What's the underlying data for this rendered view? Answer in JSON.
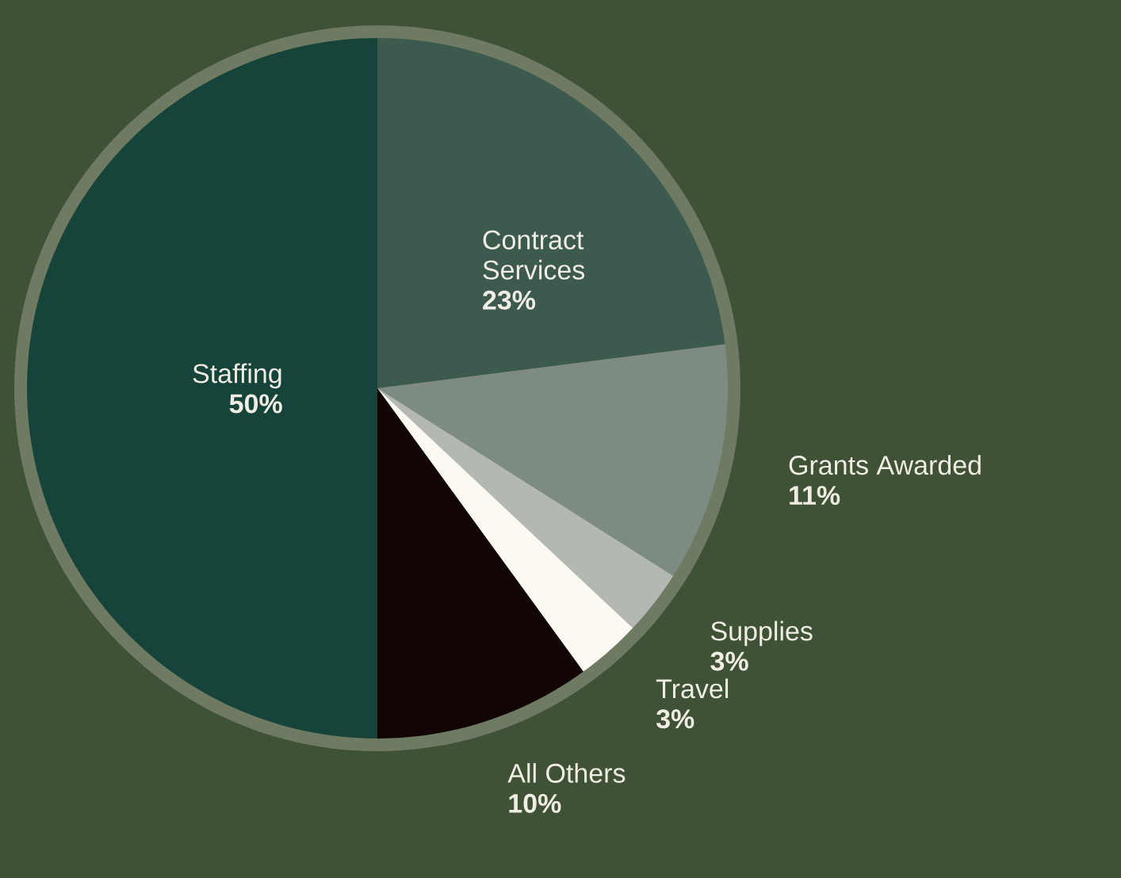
{
  "chart_data": {
    "type": "pie",
    "categories": [
      "Contract Services",
      "Grants Awarded",
      "Supplies",
      "Travel",
      "All Others",
      "Staffing"
    ],
    "values": [
      23,
      11,
      3,
      3,
      10,
      50
    ],
    "colors": [
      "#3d5a4e",
      "#7d8b82",
      "#b3b8b3",
      "#fbf9f2",
      "#120605",
      "#17443a"
    ],
    "value_labels": [
      "23%",
      "11%",
      "3%",
      "3%",
      "10%",
      "50%"
    ]
  }
}
